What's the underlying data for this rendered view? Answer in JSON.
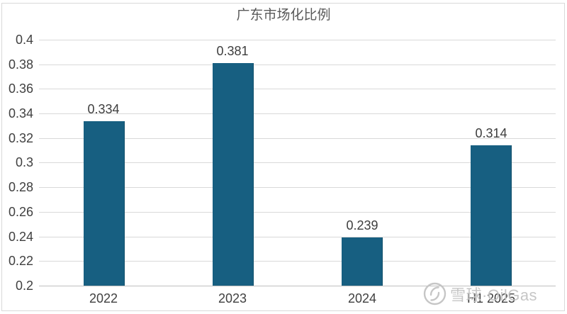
{
  "chart_data": {
    "type": "bar",
    "title": "广东市场化比例",
    "categories": [
      "2022",
      "2023",
      "2024",
      "H1 2025"
    ],
    "values": [
      0.334,
      0.381,
      0.239,
      0.314
    ],
    "data_labels": [
      "0.334",
      "0.381",
      "0.239",
      "0.314"
    ],
    "xlabel": "",
    "ylabel": "",
    "ylim": [
      0.2,
      0.4
    ],
    "ytick_step": 0.02,
    "ytick_labels": [
      "0.2",
      "0.22",
      "0.24",
      "0.26",
      "0.28",
      "0.3",
      "0.32",
      "0.34",
      "0.36",
      "0.38",
      "0.4"
    ],
    "grid": true,
    "legend_position": "none",
    "colors": {
      "bar": "#175f81",
      "bar_edge": "#12506b",
      "gridline": "#d9d9d9",
      "axis_line": "#bfbfbf",
      "tick_label": "#404040",
      "data_label": "#3d3d3d",
      "title": "#595959"
    }
  },
  "watermark": {
    "icon": "xueqiu-logo",
    "text": "雪球·OilGas",
    "color": "#c4c4c4"
  }
}
